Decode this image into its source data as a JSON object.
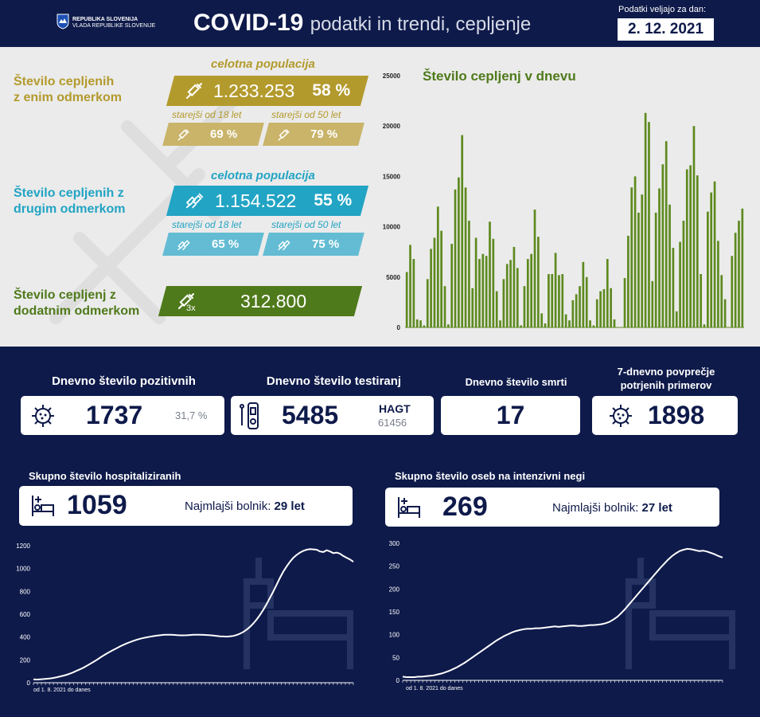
{
  "header": {
    "gov_line1": "REPUBLIKA SLOVENIJA",
    "gov_line2": "VLADA REPUBLIKE SLOVENIJE",
    "title_bold": "COVID-19",
    "title_rest": "podatki in trendi, cepljenje",
    "valid_label": "Podatki veljajo za dan:",
    "valid_date": "2. 12. 2021"
  },
  "colors": {
    "navy": "#0e1a4a",
    "olive": "#b39a2d",
    "teal": "#22a4c4",
    "green": "#4f7a1b"
  },
  "vaccination": {
    "first": {
      "title_line1": "Število cepljenih",
      "title_line2": "z enim odmerkom",
      "pop_label": "celotna populacija",
      "count": "1.233.253",
      "pct": "58 %",
      "sub18_label": "starejši od 18 let",
      "sub18_pct": "69 %",
      "sub50_label": "starejši od 50 let",
      "sub50_pct": "79 %"
    },
    "second": {
      "title_line1": "Število cepljenih z",
      "title_line2": "drugim odmerkom",
      "pop_label": "celotna populacija",
      "count": "1.154.522",
      "pct": "55 %",
      "sub18_label": "starejši od 18 let",
      "sub18_pct": "65 %",
      "sub50_label": "starejši od 50 let",
      "sub50_pct": "75 %"
    },
    "booster": {
      "title_line1": "Število cepljenj z",
      "title_line2": "dodatnim odmerkom",
      "dose_label": "3x",
      "count": "312.800"
    }
  },
  "stats": {
    "positive": {
      "label": "Dnevno število pozitivnih",
      "value": "1737",
      "pct": "31,7 %"
    },
    "tests": {
      "label": "Dnevno število testiranj",
      "value": "5485",
      "hagt_label": "HAGT",
      "hagt_value": "61456"
    },
    "deaths": {
      "label": "Dnevno število smrti",
      "value": "17"
    },
    "avg7": {
      "label_line1": "7-dnevno povprečje",
      "label_line2": "potrjenih primerov",
      "value": "1898"
    }
  },
  "hospital": {
    "title": "Skupno število hospitaliziranih",
    "value": "1059",
    "youngest_label": "Najmlajši bolnik:",
    "youngest_value": "29 let",
    "from_label": "od 1. 8. 2021 do danes"
  },
  "icu": {
    "title": "Skupno število oseb na intenzivni negi",
    "value": "269",
    "youngest_label": "Najmlajši bolnik:",
    "youngest_value": "27 let",
    "from_label": "od 1. 8. 2021 do danes"
  },
  "chart_data": [
    {
      "type": "bar",
      "title": "Število cepljenj v dnevu",
      "ylim": [
        0,
        25000
      ],
      "yticks": [
        0,
        5000,
        10000,
        15000,
        20000,
        25000
      ],
      "values": [
        5500,
        8200,
        6800,
        800,
        700,
        200,
        4800,
        7800,
        8900,
        12000,
        9600,
        4100,
        300,
        8300,
        13700,
        14900,
        19100,
        13900,
        10600,
        3900,
        8900,
        6800,
        7300,
        7100,
        10500,
        8800,
        3600,
        700,
        4800,
        6300,
        6700,
        8000,
        5900,
        200,
        4100,
        6800,
        7300,
        11700,
        9000,
        1400,
        400,
        5300,
        5300,
        7400,
        5200,
        5300,
        1300,
        700,
        2700,
        3300,
        4100,
        6500,
        5000,
        700,
        200,
        2800,
        3600,
        3800,
        6800,
        3900,
        800,
        0,
        0,
        4900,
        9100,
        13900,
        15000,
        11400,
        13200,
        21300,
        20400,
        4600,
        11400,
        13800,
        16200,
        18500,
        12200,
        7900,
        1600,
        8500,
        10600,
        15700,
        16100,
        20000,
        15100,
        5300,
        300,
        11500,
        13400,
        14500,
        8600,
        5200,
        2800,
        0,
        7100,
        9400,
        10600,
        11800
      ]
    },
    {
      "type": "line",
      "title": "Skupno število hospitaliziranih",
      "xlabel": "od 1. 8. 2021 do danes",
      "ylim": [
        0,
        1200
      ],
      "yticks": [
        0,
        200,
        400,
        600,
        800,
        1000,
        1200
      ],
      "values": [
        30,
        28,
        30,
        32,
        35,
        38,
        42,
        48,
        55,
        62,
        70,
        80,
        92,
        105,
        118,
        132,
        148,
        165,
        182,
        200,
        220,
        238,
        255,
        272,
        288,
        303,
        318,
        332,
        345,
        356,
        367,
        376,
        385,
        392,
        398,
        403,
        408,
        412,
        416,
        419,
        420,
        421,
        419,
        417,
        415,
        415,
        416,
        418,
        420,
        421,
        420,
        419,
        418,
        416,
        413,
        410,
        407,
        405,
        404,
        406,
        410,
        418,
        430,
        445,
        465,
        490,
        520,
        555,
        595,
        640,
        690,
        745,
        800,
        860,
        920,
        975,
        1020,
        1060,
        1095,
        1120,
        1140,
        1155,
        1165,
        1170,
        1168,
        1165,
        1150,
        1145,
        1160,
        1150,
        1135,
        1140,
        1130,
        1110,
        1095,
        1080,
        1059
      ]
    },
    {
      "type": "line",
      "title": "Skupno število oseb na intenzivni negi",
      "xlabel": "od 1. 8. 2021 do danes",
      "ylim": [
        0,
        300
      ],
      "yticks": [
        0,
        50,
        100,
        150,
        200,
        250,
        300
      ],
      "values": [
        8,
        7,
        7,
        7,
        8,
        8,
        9,
        10,
        11,
        13,
        15,
        18,
        21,
        25,
        29,
        34,
        39,
        45,
        51,
        57,
        63,
        69,
        75,
        81,
        87,
        92,
        97,
        101,
        105,
        108,
        110,
        112,
        113,
        113,
        114,
        114,
        115,
        116,
        117,
        118,
        117,
        118,
        119,
        120,
        120,
        119,
        119,
        120,
        121,
        121,
        122,
        123,
        125,
        128,
        133,
        139,
        147,
        156,
        166,
        176,
        186,
        196,
        206,
        216,
        226,
        236,
        246,
        255,
        264,
        272,
        278,
        283,
        286,
        288,
        287,
        285,
        283,
        284,
        282,
        279,
        276,
        272,
        269
      ]
    }
  ]
}
